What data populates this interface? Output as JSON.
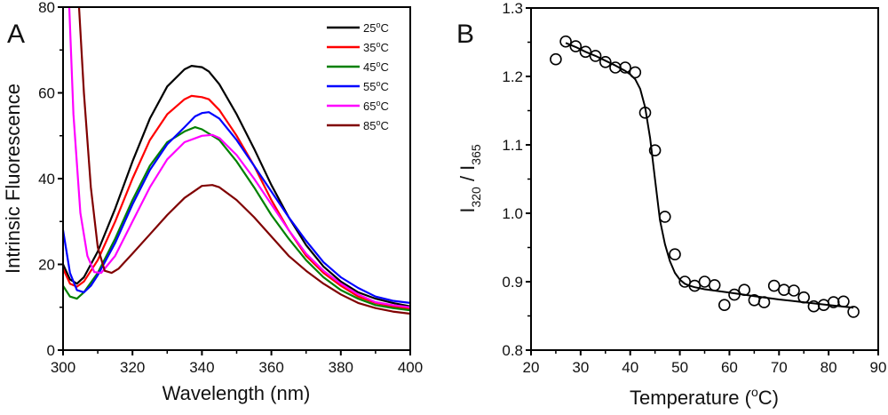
{
  "chart_data": [
    {
      "panel": "A",
      "type": "line",
      "title": "",
      "xlabel": "Wavelength (nm)",
      "ylabel": "Intrinsic Fluorescence",
      "xlim": [
        300,
        400
      ],
      "ylim": [
        0,
        80
      ],
      "xticks": [
        300,
        320,
        340,
        360,
        380,
        400
      ],
      "yticks": [
        0,
        20,
        40,
        60,
        80
      ],
      "grid": false,
      "legend_position": "top-right",
      "series": [
        {
          "name": "25°C",
          "label_num": "25",
          "color": "#000000",
          "x": [
            300,
            302,
            304,
            306,
            310,
            315,
            320,
            325,
            330,
            335,
            337,
            340,
            342,
            345,
            350,
            355,
            360,
            365,
            370,
            375,
            380,
            385,
            390,
            395,
            400
          ],
          "y": [
            20,
            16.5,
            15.5,
            17,
            23,
            33,
            44,
            54,
            61.5,
            65.5,
            66.3,
            66,
            65,
            62,
            55,
            47,
            38.5,
            31,
            24.5,
            19.5,
            16,
            13.5,
            12,
            11,
            10.2
          ]
        },
        {
          "name": "35°C",
          "label_num": "35",
          "color": "#ff0000",
          "x": [
            300,
            302,
            304,
            306,
            310,
            315,
            320,
            325,
            330,
            335,
            337,
            340,
            342,
            345,
            350,
            355,
            360,
            365,
            370,
            375,
            380,
            385,
            390,
            395,
            400
          ],
          "y": [
            19,
            15.5,
            14.8,
            16,
            21,
            30,
            40,
            49,
            55,
            58.5,
            59.3,
            59,
            58.5,
            56,
            50,
            43,
            35,
            28,
            22,
            18,
            15,
            12.5,
            11,
            10.2,
            9.7
          ]
        },
        {
          "name": "45°C",
          "label_num": "45",
          "color": "#008000",
          "x": [
            300,
            302,
            304,
            306,
            310,
            315,
            320,
            325,
            330,
            335,
            338,
            340,
            345,
            350,
            355,
            360,
            365,
            370,
            375,
            380,
            385,
            390,
            395,
            400
          ],
          "y": [
            15,
            12.5,
            12,
            13.5,
            18,
            26,
            35,
            43,
            48.5,
            51,
            52,
            51.5,
            49,
            44,
            38,
            31.5,
            26,
            21,
            17,
            14,
            12,
            10.5,
            9.8,
            9.3
          ]
        },
        {
          "name": "55°C",
          "label_num": "55",
          "color": "#0000ff",
          "x": [
            300,
            302,
            304,
            306,
            308,
            310,
            315,
            320,
            325,
            330,
            335,
            338,
            340,
            342,
            345,
            350,
            355,
            360,
            365,
            370,
            375,
            380,
            385,
            390,
            395,
            400
          ],
          "y": [
            28,
            18,
            14,
            13.5,
            15,
            17.5,
            25,
            34,
            42,
            48,
            52,
            54.5,
            55.3,
            55.5,
            54,
            49,
            43,
            37,
            31,
            25.5,
            20.5,
            17,
            14.5,
            12.5,
            11.5,
            11
          ]
        },
        {
          "name": "65°C",
          "label_num": "65",
          "color": "#ff00ff",
          "x": [
            301.8,
            303,
            305,
            307,
            309,
            311,
            315,
            320,
            325,
            330,
            335,
            340,
            343,
            345,
            350,
            355,
            360,
            365,
            370,
            375,
            380,
            385,
            390,
            395,
            400
          ],
          "y": [
            80,
            55,
            32,
            22,
            18.2,
            18,
            22,
            30,
            38,
            44.5,
            48.5,
            50,
            50.2,
            49.5,
            45.5,
            40,
            34,
            28,
            22.5,
            18.5,
            15.5,
            13,
            11.2,
            10.5,
            10
          ]
        },
        {
          "name": "85°C",
          "label_num": "85",
          "color": "#800000",
          "x": [
            304.6,
            306,
            308,
            310,
            312,
            314,
            316,
            320,
            325,
            330,
            335,
            340,
            343,
            345,
            350,
            355,
            360,
            365,
            370,
            375,
            380,
            385,
            390,
            395,
            400
          ],
          "y": [
            80,
            60,
            38,
            24,
            18.5,
            18,
            19,
            22.5,
            27,
            31.5,
            35.5,
            38.3,
            38.5,
            38,
            35,
            31,
            26.5,
            22,
            18.5,
            15.5,
            13,
            11,
            9.8,
            9,
            8.5
          ]
        }
      ]
    },
    {
      "panel": "B",
      "type": "scatter",
      "title": "",
      "xlabel": "Temperature (°C)",
      "xlabel_main": "Temperature (",
      "xlabel_sup": "o",
      "xlabel_end": "C)",
      "ylabel": "I320 / I365",
      "ylabel_parts": {
        "i1": "I",
        "sub1": "320",
        "sep": " / ",
        "i2": "I",
        "sub2": "365"
      },
      "xlim": [
        20,
        90
      ],
      "ylim": [
        0.8,
        1.3
      ],
      "xticks": [
        20,
        30,
        40,
        50,
        60,
        70,
        80,
        90
      ],
      "yticks": [
        0.8,
        0.9,
        1.0,
        1.1,
        1.2,
        1.3
      ],
      "ytick_labels": [
        "0.8",
        "0.9",
        "1.0",
        "1.1",
        "1.2",
        "1.3"
      ],
      "grid": false,
      "points": {
        "x": [
          25,
          27,
          29,
          31,
          33,
          35,
          37,
          39,
          41,
          43,
          45,
          47,
          49,
          51,
          53,
          55,
          57,
          59,
          61,
          63,
          65,
          67,
          69,
          71,
          73,
          75,
          77,
          79,
          81,
          83,
          85
        ],
        "y": [
          1.225,
          1.251,
          1.244,
          1.236,
          1.23,
          1.221,
          1.213,
          1.213,
          1.206,
          1.147,
          1.092,
          0.995,
          0.94,
          0.9,
          0.894,
          0.9,
          0.895,
          0.866,
          0.881,
          0.888,
          0.873,
          0.87,
          0.894,
          0.888,
          0.887,
          0.877,
          0.864,
          0.866,
          0.87,
          0.871,
          0.856
        ]
      },
      "fit_line": {
        "x": [
          27,
          29,
          31,
          33,
          35,
          37,
          39,
          40,
          41,
          42,
          43,
          44,
          45,
          46,
          47,
          48,
          49,
          50,
          51,
          52,
          53,
          55,
          60,
          65,
          70,
          75,
          80,
          85
        ],
        "y": [
          1.249,
          1.243,
          1.236,
          1.23,
          1.223,
          1.216,
          1.208,
          1.203,
          1.196,
          1.182,
          1.155,
          1.11,
          1.05,
          0.99,
          0.955,
          0.93,
          0.913,
          0.903,
          0.897,
          0.894,
          0.892,
          0.889,
          0.884,
          0.879,
          0.874,
          0.87,
          0.866,
          0.862
        ]
      }
    }
  ],
  "panel_labels": {
    "a": "A",
    "b": "B"
  },
  "legend_suffix_sup": "o",
  "legend_suffix_end": "C"
}
